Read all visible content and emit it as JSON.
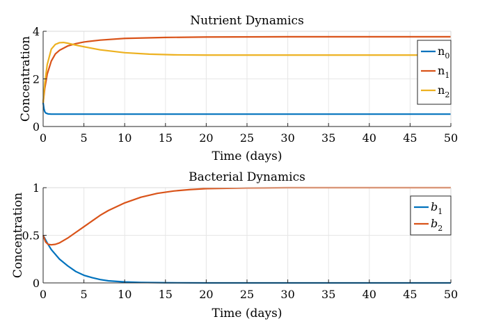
{
  "chart_data": [
    {
      "type": "line",
      "title": "Nutrient Dynamics",
      "xlabel": "Time (days)",
      "ylabel": "Concentration",
      "xlim": [
        0,
        50
      ],
      "ylim": [
        0,
        4
      ],
      "xticks": [
        0,
        5,
        10,
        15,
        20,
        25,
        30,
        35,
        40,
        45,
        50
      ],
      "yticks": [
        0,
        2,
        4
      ],
      "grid": true,
      "legend_position": "top-right",
      "series": [
        {
          "name": "n",
          "subscript": "0",
          "color": "#0072BD",
          "points": [
            [
              0,
              1.0
            ],
            [
              0.1,
              0.75
            ],
            [
              0.2,
              0.62
            ],
            [
              0.35,
              0.56
            ],
            [
              0.6,
              0.53
            ],
            [
              1,
              0.52
            ],
            [
              50,
              0.52
            ]
          ]
        },
        {
          "name": "n",
          "subscript": "1",
          "color": "#D95319",
          "points": [
            [
              0,
              1.0
            ],
            [
              0.2,
              1.6
            ],
            [
              0.5,
              2.2
            ],
            [
              1,
              2.75
            ],
            [
              1.5,
              3.05
            ],
            [
              2,
              3.2
            ],
            [
              3,
              3.38
            ],
            [
              4,
              3.48
            ],
            [
              5,
              3.55
            ],
            [
              7,
              3.63
            ],
            [
              10,
              3.7
            ],
            [
              15,
              3.74
            ],
            [
              20,
              3.76
            ],
            [
              30,
              3.77
            ],
            [
              50,
              3.77
            ]
          ]
        },
        {
          "name": "n",
          "subscript": "2",
          "color": "#EDB120",
          "points": [
            [
              0,
              1.0
            ],
            [
              0.2,
              1.8
            ],
            [
              0.5,
              2.6
            ],
            [
              1,
              3.25
            ],
            [
              1.5,
              3.45
            ],
            [
              2,
              3.52
            ],
            [
              2.5,
              3.53
            ],
            [
              3,
              3.5
            ],
            [
              4,
              3.42
            ],
            [
              5,
              3.35
            ],
            [
              7,
              3.22
            ],
            [
              10,
              3.1
            ],
            [
              13,
              3.04
            ],
            [
              16,
              3.01
            ],
            [
              20,
              3.0
            ],
            [
              50,
              3.0
            ]
          ]
        }
      ]
    },
    {
      "type": "line",
      "title": "Bacterial Dynamics",
      "xlabel": "Time (days)",
      "ylabel": "Concentration",
      "xlim": [
        0,
        50
      ],
      "ylim": [
        0,
        1
      ],
      "xticks": [
        0,
        5,
        10,
        15,
        20,
        25,
        30,
        35,
        40,
        45,
        50
      ],
      "yticks": [
        0,
        0.5,
        1
      ],
      "grid": true,
      "legend_position": "top-right",
      "series": [
        {
          "name": "b",
          "subscript": "1",
          "color": "#0072BD",
          "points": [
            [
              0,
              0.5
            ],
            [
              0.5,
              0.42
            ],
            [
              1,
              0.35
            ],
            [
              2,
              0.25
            ],
            [
              3,
              0.18
            ],
            [
              4,
              0.12
            ],
            [
              5,
              0.08
            ],
            [
              6,
              0.055
            ],
            [
              7,
              0.035
            ],
            [
              8,
              0.022
            ],
            [
              10,
              0.01
            ],
            [
              12,
              0.005
            ],
            [
              15,
              0.002
            ],
            [
              20,
              0.0
            ],
            [
              50,
              0.0
            ]
          ]
        },
        {
          "name": "b",
          "subscript": "2",
          "color": "#D95319",
          "points": [
            [
              0,
              0.5
            ],
            [
              0.3,
              0.43
            ],
            [
              0.6,
              0.405
            ],
            [
              1,
              0.4
            ],
            [
              1.5,
              0.405
            ],
            [
              2,
              0.42
            ],
            [
              3,
              0.47
            ],
            [
              4,
              0.53
            ],
            [
              5,
              0.59
            ],
            [
              6,
              0.65
            ],
            [
              7,
              0.71
            ],
            [
              8,
              0.76
            ],
            [
              9,
              0.8
            ],
            [
              10,
              0.84
            ],
            [
              12,
              0.9
            ],
            [
              14,
              0.94
            ],
            [
              16,
              0.965
            ],
            [
              18,
              0.98
            ],
            [
              20,
              0.99
            ],
            [
              25,
              0.997
            ],
            [
              30,
              1.0
            ],
            [
              50,
              1.0
            ]
          ]
        }
      ]
    }
  ]
}
